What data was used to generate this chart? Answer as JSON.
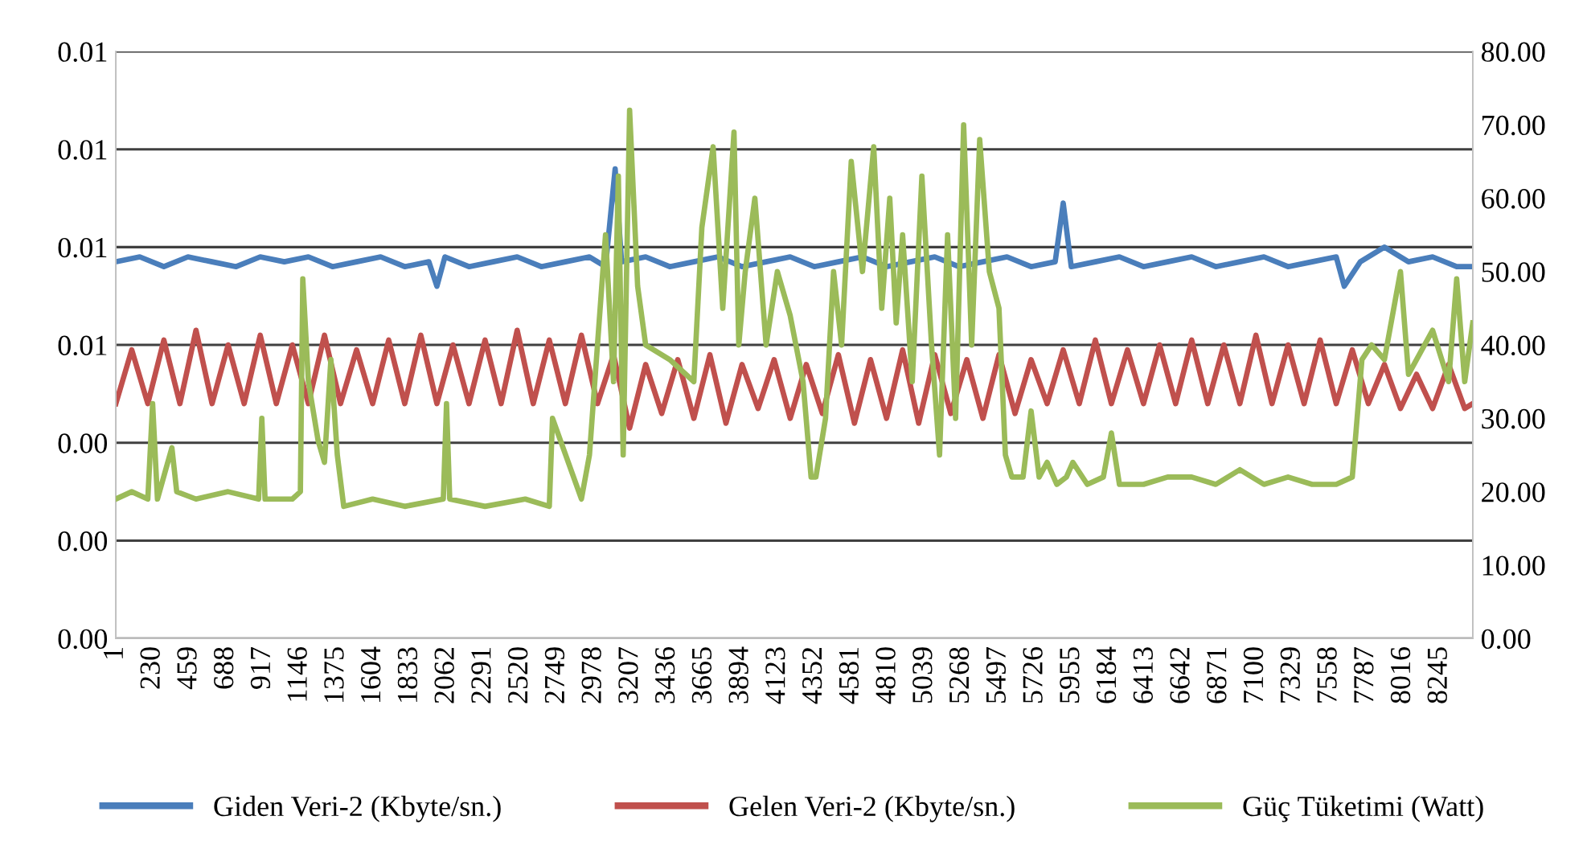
{
  "chart_data": {
    "type": "line",
    "xlim": [
      1,
      8450
    ],
    "xticks": [
      1,
      230,
      459,
      688,
      917,
      1146,
      1375,
      1604,
      1833,
      2062,
      2291,
      2520,
      2749,
      2978,
      3207,
      3436,
      3665,
      3894,
      4123,
      4352,
      4581,
      4810,
      5039,
      5268,
      5497,
      5726,
      5955,
      6184,
      6413,
      6642,
      6871,
      7100,
      7329,
      7558,
      7787,
      8016,
      8245
    ],
    "ylim": [
      0,
      0.012
    ],
    "yticks": [
      {
        "value": 0,
        "label": "0.00"
      },
      {
        "value": 0.002,
        "label": "0.00"
      },
      {
        "value": 0.004,
        "label": "0.00"
      },
      {
        "value": 0.006,
        "label": "0.01"
      },
      {
        "value": 0.008,
        "label": "0.01"
      },
      {
        "value": 0.01,
        "label": "0.01"
      },
      {
        "value": 0.012,
        "label": "0.01"
      }
    ],
    "y2lim": [
      0,
      80
    ],
    "y2ticks": [
      {
        "value": 0,
        "label": "0.00"
      },
      {
        "value": 10,
        "label": "10.00"
      },
      {
        "value": 20,
        "label": "20.00"
      },
      {
        "value": 30,
        "label": "30.00"
      },
      {
        "value": 40,
        "label": "40.00"
      },
      {
        "value": 50,
        "label": "50.00"
      },
      {
        "value": 60,
        "label": "60.00"
      },
      {
        "value": 70,
        "label": "70.00"
      },
      {
        "value": 80,
        "label": "80.00"
      }
    ],
    "grid": "y",
    "legend": "bottom",
    "marker": "none",
    "series": [
      {
        "name": "Giden Veri-2 (Kbyte/sn.)",
        "color": "#4a7ebb",
        "x": [
          1,
          150,
          300,
          450,
          600,
          750,
          900,
          1050,
          1200,
          1350,
          1500,
          1650,
          1800,
          1950,
          2000,
          2050,
          2200,
          2350,
          2500,
          2650,
          2800,
          2950,
          3050,
          3110,
          3150,
          3300,
          3450,
          3600,
          3750,
          3900,
          4050,
          4200,
          4350,
          4500,
          4650,
          4800,
          4950,
          5100,
          5250,
          5400,
          5550,
          5700,
          5850,
          5900,
          5950,
          6100,
          6250,
          6400,
          6550,
          6700,
          6850,
          7000,
          7150,
          7300,
          7450,
          7600,
          7650,
          7750,
          7900,
          8050,
          8200,
          8350,
          8450
        ],
        "values": [
          0.0077,
          0.0078,
          0.0076,
          0.0078,
          0.0077,
          0.0076,
          0.0078,
          0.0077,
          0.0078,
          0.0076,
          0.0077,
          0.0078,
          0.0076,
          0.0077,
          0.0072,
          0.0078,
          0.0076,
          0.0077,
          0.0078,
          0.0076,
          0.0077,
          0.0078,
          0.0076,
          0.0096,
          0.0077,
          0.0078,
          0.0076,
          0.0077,
          0.0078,
          0.0076,
          0.0077,
          0.0078,
          0.0076,
          0.0077,
          0.0078,
          0.0076,
          0.0077,
          0.0078,
          0.0076,
          0.0077,
          0.0078,
          0.0076,
          0.0077,
          0.0089,
          0.0076,
          0.0077,
          0.0078,
          0.0076,
          0.0077,
          0.0078,
          0.0076,
          0.0077,
          0.0078,
          0.0076,
          0.0077,
          0.0078,
          0.0072,
          0.0077,
          0.008,
          0.0077,
          0.0078,
          0.0076,
          0.0076
        ]
      },
      {
        "name": "Gelen Veri-2 (Kbyte/sn.)",
        "color": "#c0504d",
        "x": [
          1,
          100,
          200,
          300,
          400,
          500,
          600,
          700,
          800,
          900,
          1000,
          1100,
          1200,
          1300,
          1400,
          1500,
          1600,
          1700,
          1800,
          1900,
          2000,
          2100,
          2200,
          2300,
          2400,
          2500,
          2600,
          2700,
          2800,
          2900,
          3000,
          3100,
          3200,
          3300,
          3400,
          3500,
          3600,
          3700,
          3800,
          3900,
          4000,
          4100,
          4200,
          4300,
          4400,
          4500,
          4600,
          4700,
          4800,
          4900,
          5000,
          5100,
          5200,
          5300,
          5400,
          5500,
          5600,
          5700,
          5800,
          5900,
          6000,
          6100,
          6200,
          6300,
          6400,
          6500,
          6600,
          6700,
          6800,
          6900,
          7000,
          7100,
          7200,
          7300,
          7400,
          7500,
          7600,
          7700,
          7800,
          7900,
          8000,
          8100,
          8200,
          8300,
          8400,
          8450
        ],
        "values": [
          0.0048,
          0.0059,
          0.0048,
          0.0061,
          0.0048,
          0.0063,
          0.0048,
          0.006,
          0.0048,
          0.0062,
          0.0048,
          0.006,
          0.0048,
          0.0062,
          0.0048,
          0.0059,
          0.0048,
          0.0061,
          0.0048,
          0.0062,
          0.0048,
          0.006,
          0.0048,
          0.0061,
          0.0048,
          0.0063,
          0.0048,
          0.0061,
          0.0048,
          0.0062,
          0.0048,
          0.0058,
          0.0043,
          0.0056,
          0.0046,
          0.0057,
          0.0045,
          0.0058,
          0.0044,
          0.0056,
          0.0047,
          0.0057,
          0.0045,
          0.0056,
          0.0046,
          0.0058,
          0.0044,
          0.0057,
          0.0045,
          0.0059,
          0.0044,
          0.0058,
          0.0046,
          0.0057,
          0.0045,
          0.0058,
          0.0046,
          0.0057,
          0.0048,
          0.0059,
          0.0048,
          0.0061,
          0.0048,
          0.0059,
          0.0048,
          0.006,
          0.0048,
          0.0061,
          0.0048,
          0.006,
          0.0048,
          0.0062,
          0.0048,
          0.006,
          0.0048,
          0.0061,
          0.0048,
          0.0059,
          0.0048,
          0.0056,
          0.0047,
          0.0054,
          0.0047,
          0.0056,
          0.0047,
          0.0048
        ]
      },
      {
        "name": "Güç Tüketimi (Watt)",
        "color": "#9bbb59",
        "axis": "y2",
        "x": [
          1,
          100,
          200,
          230,
          260,
          350,
          380,
          500,
          700,
          890,
          910,
          930,
          1100,
          1150,
          1165,
          1200,
          1260,
          1300,
          1340,
          1380,
          1420,
          1600,
          1800,
          2040,
          2060,
          2080,
          2300,
          2550,
          2700,
          2720,
          2900,
          2950,
          3000,
          3050,
          3100,
          3130,
          3160,
          3200,
          3250,
          3300,
          3450,
          3600,
          3650,
          3720,
          3780,
          3850,
          3880,
          3920,
          3980,
          4050,
          4120,
          4200,
          4280,
          4330,
          4360,
          4420,
          4470,
          4520,
          4580,
          4650,
          4720,
          4770,
          4820,
          4860,
          4900,
          4960,
          5020,
          5080,
          5130,
          5180,
          5230,
          5280,
          5330,
          5380,
          5440,
          5500,
          5540,
          5580,
          5650,
          5700,
          5750,
          5800,
          5860,
          5920,
          5960,
          6050,
          6150,
          6200,
          6250,
          6400,
          6550,
          6700,
          6850,
          7000,
          7150,
          7300,
          7450,
          7600,
          7700,
          7760,
          7820,
          7900,
          8000,
          8050,
          8100,
          8200,
          8300,
          8350,
          8400,
          8450
        ],
        "values": [
          19,
          20,
          19,
          32,
          19,
          26,
          20,
          19,
          20,
          19,
          30,
          19,
          19,
          20,
          49,
          35,
          27,
          24,
          38,
          25,
          18,
          19,
          18,
          19,
          32,
          19,
          18,
          19,
          18,
          30,
          19,
          25,
          40,
          55,
          35,
          63,
          25,
          72,
          48,
          40,
          38,
          35,
          56,
          67,
          45,
          69,
          40,
          50,
          60,
          40,
          50,
          44,
          35,
          22,
          22,
          30,
          50,
          40,
          65,
          50,
          67,
          45,
          60,
          43,
          55,
          35,
          63,
          40,
          25,
          55,
          30,
          70,
          40,
          68,
          50,
          45,
          25,
          22,
          22,
          31,
          22,
          24,
          21,
          22,
          24,
          21,
          22,
          28,
          21,
          21,
          22,
          22,
          21,
          23,
          21,
          22,
          21,
          21,
          22,
          38,
          40,
          38,
          50,
          36,
          38,
          42,
          35,
          49,
          35,
          43
        ]
      }
    ]
  }
}
